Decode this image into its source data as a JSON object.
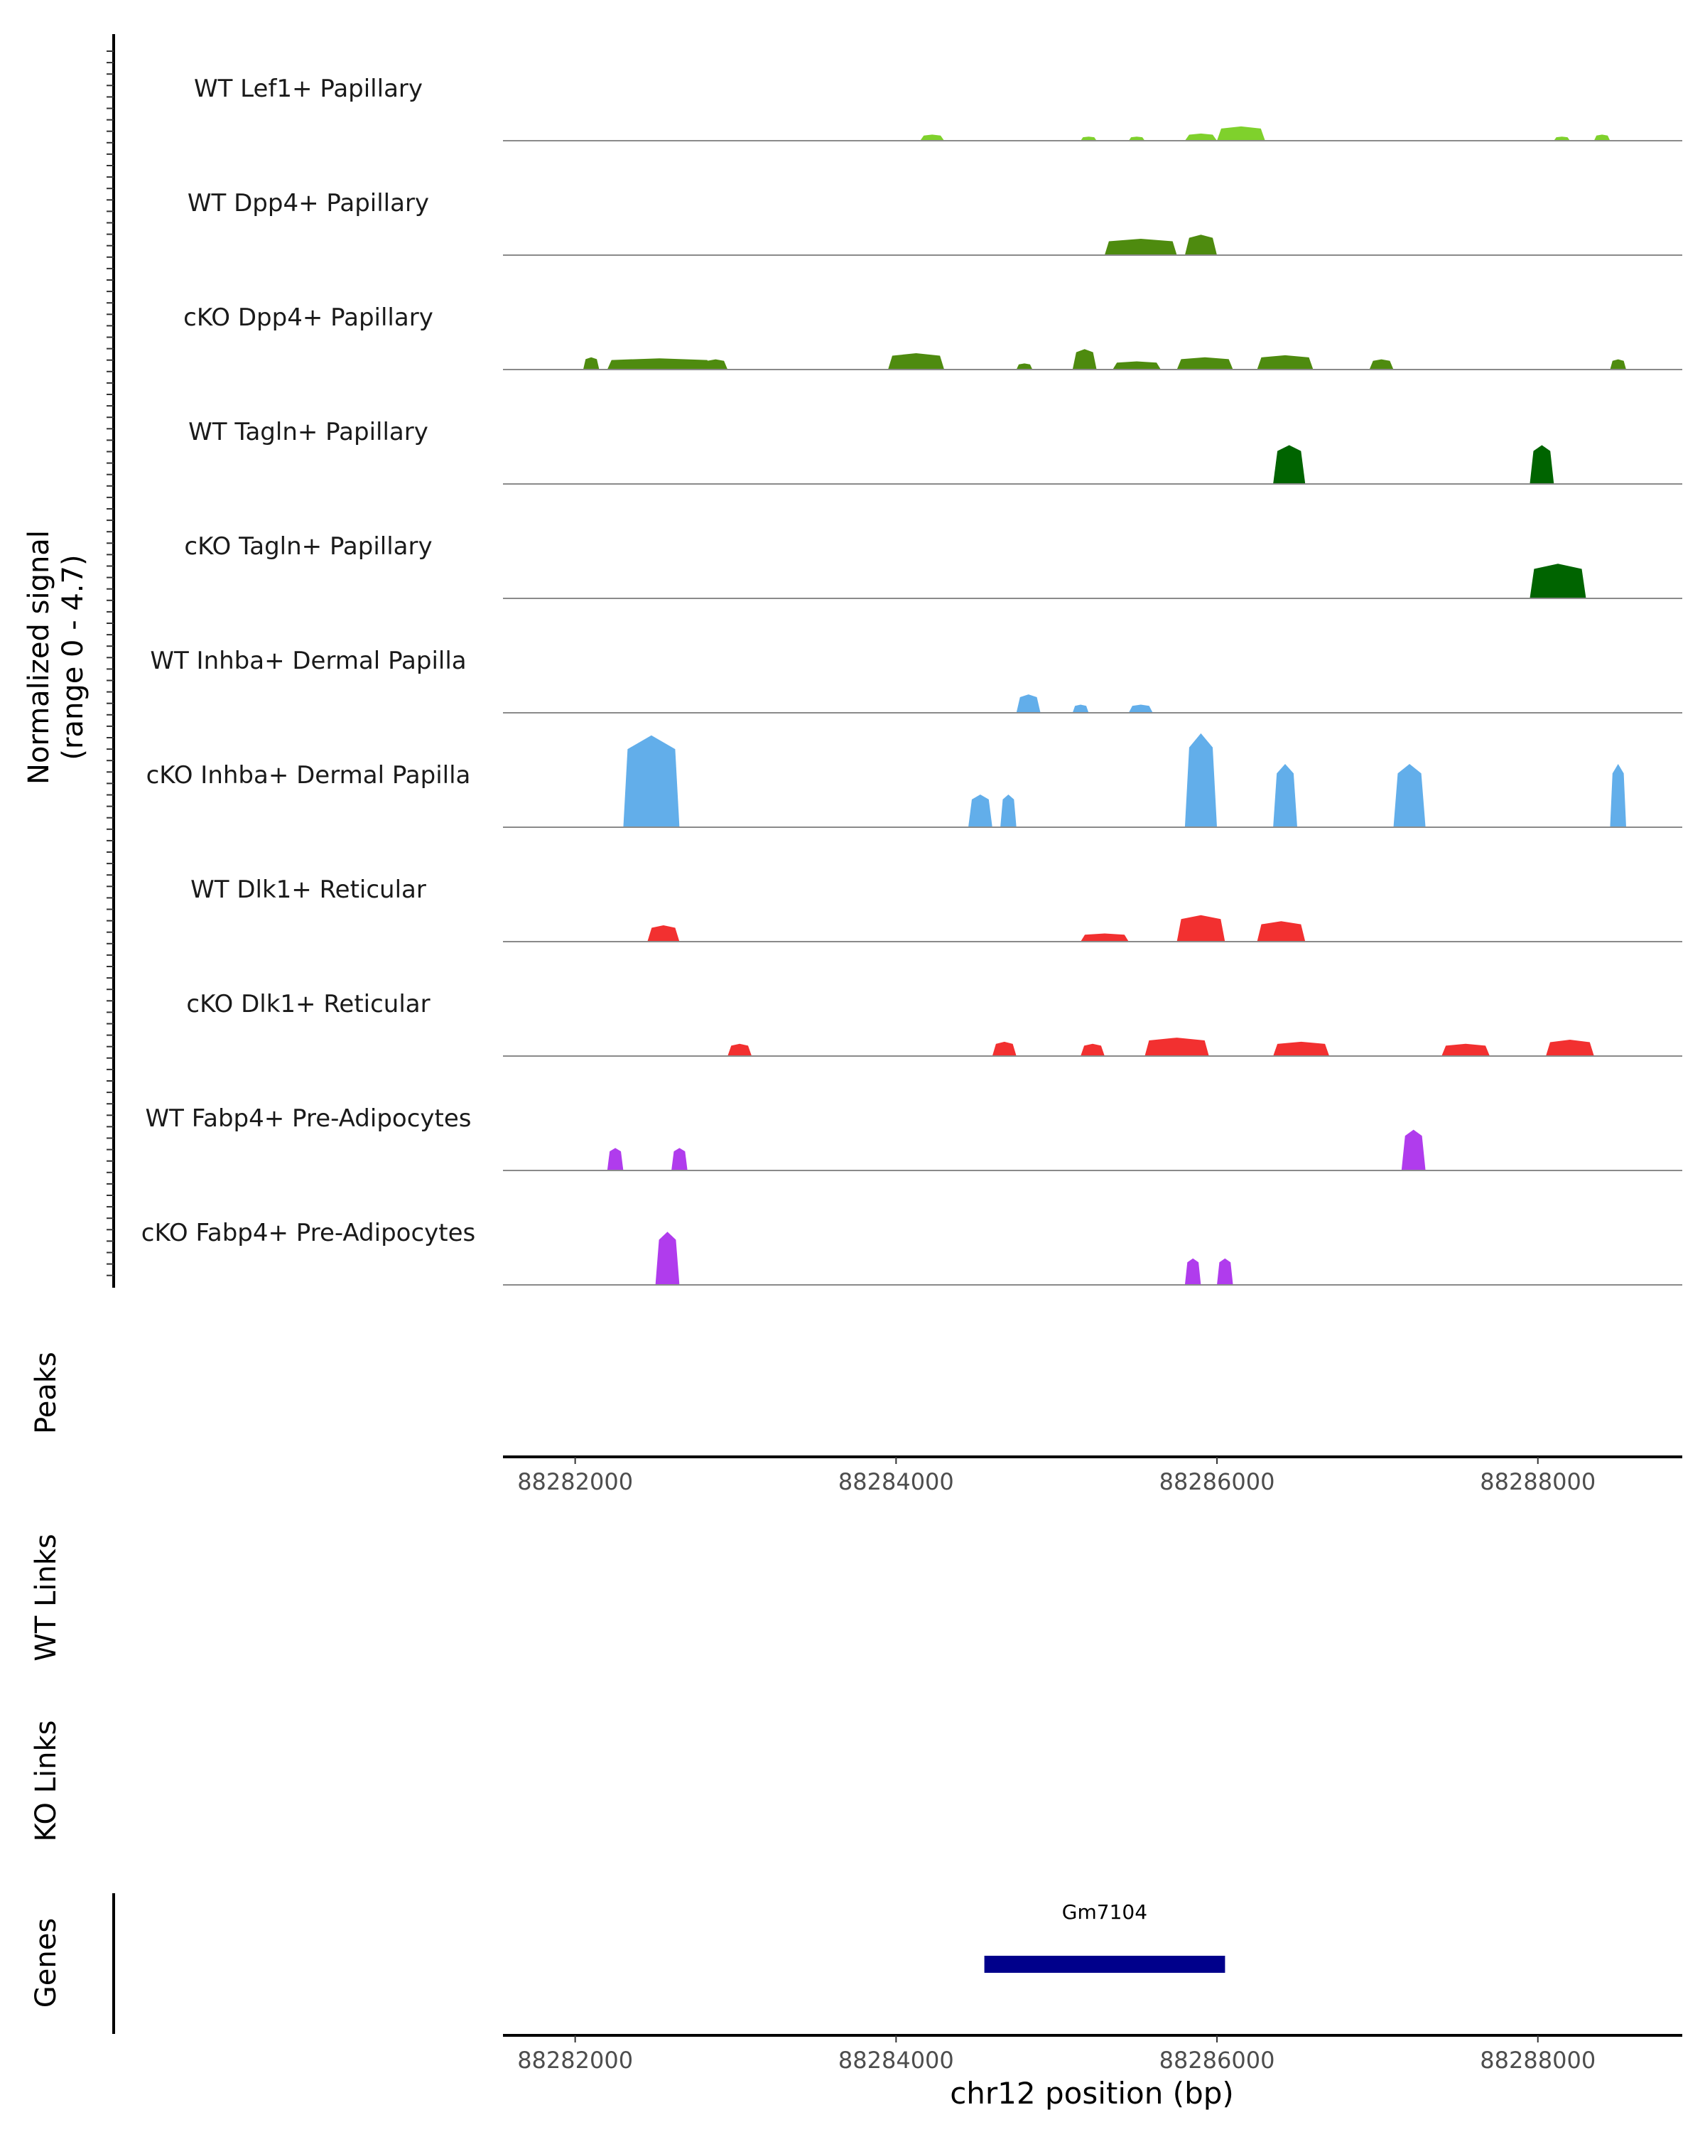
{
  "chart_data": {
    "type": "area",
    "title": "",
    "ylabel_line1": "Normalized signal",
    "ylabel_line2": "(range 0 - 4.7)",
    "yrange": [
      0,
      4.7
    ],
    "xlabel": "chr12 position (bp)",
    "xlim": [
      88281550,
      88288900
    ],
    "xticks": [
      88282000,
      88284000,
      88286000,
      88288000
    ],
    "xtick_labels": [
      "88282000",
      "88284000",
      "88286000",
      "88288000"
    ],
    "series": [
      {
        "name": "WT Lef1+ Papillary",
        "color": "#7fd12c",
        "peaks": [
          {
            "start": 88284150,
            "end": 88284300,
            "height": 0.3
          },
          {
            "start": 88285150,
            "end": 88285250,
            "height": 0.2
          },
          {
            "start": 88285450,
            "end": 88285550,
            "height": 0.2
          },
          {
            "start": 88285800,
            "end": 88286000,
            "height": 0.35
          },
          {
            "start": 88286000,
            "end": 88286300,
            "height": 0.7
          },
          {
            "start": 88288100,
            "end": 88288200,
            "height": 0.2
          },
          {
            "start": 88288350,
            "end": 88288450,
            "height": 0.3
          }
        ]
      },
      {
        "name": "WT Dpp4+ Papillary",
        "color": "#4e8b0f",
        "peaks": [
          {
            "start": 88285300,
            "end": 88285750,
            "height": 0.8
          },
          {
            "start": 88285800,
            "end": 88286000,
            "height": 1.0
          }
        ]
      },
      {
        "name": "cKO Dpp4+ Papillary",
        "color": "#4e8b0f",
        "peaks": [
          {
            "start": 88282050,
            "end": 88282150,
            "height": 0.6
          },
          {
            "start": 88282200,
            "end": 88282850,
            "height": 0.55
          },
          {
            "start": 88282800,
            "end": 88282950,
            "height": 0.5
          },
          {
            "start": 88283950,
            "end": 88284300,
            "height": 0.8
          },
          {
            "start": 88284750,
            "end": 88284850,
            "height": 0.3
          },
          {
            "start": 88285100,
            "end": 88285250,
            "height": 1.0
          },
          {
            "start": 88285350,
            "end": 88285650,
            "height": 0.4
          },
          {
            "start": 88285750,
            "end": 88286100,
            "height": 0.6
          },
          {
            "start": 88286250,
            "end": 88286600,
            "height": 0.7
          },
          {
            "start": 88286950,
            "end": 88287100,
            "height": 0.5
          },
          {
            "start": 88288450,
            "end": 88288550,
            "height": 0.5
          }
        ]
      },
      {
        "name": "WT Tagln+ Papillary",
        "color": "#006400",
        "peaks": [
          {
            "start": 88286350,
            "end": 88286550,
            "height": 1.9
          },
          {
            "start": 88287950,
            "end": 88288100,
            "height": 1.9
          }
        ]
      },
      {
        "name": "cKO Tagln+ Papillary",
        "color": "#006400",
        "peaks": [
          {
            "start": 88287950,
            "end": 88288300,
            "height": 1.7
          }
        ]
      },
      {
        "name": "WT Inhba+ Dermal Papilla",
        "color": "#62aeea",
        "peaks": [
          {
            "start": 88284750,
            "end": 88284900,
            "height": 0.9
          },
          {
            "start": 88285100,
            "end": 88285200,
            "height": 0.4
          },
          {
            "start": 88285450,
            "end": 88285600,
            "height": 0.4
          }
        ]
      },
      {
        "name": "cKO Inhba+ Dermal Papilla",
        "color": "#62aeea",
        "peaks": [
          {
            "start": 88282300,
            "end": 88282650,
            "height": 4.5
          },
          {
            "start": 88284450,
            "end": 88284600,
            "height": 1.6
          },
          {
            "start": 88284650,
            "end": 88284750,
            "height": 1.6
          },
          {
            "start": 88285800,
            "end": 88286000,
            "height": 4.6
          },
          {
            "start": 88286350,
            "end": 88286500,
            "height": 3.1
          },
          {
            "start": 88287100,
            "end": 88287300,
            "height": 3.1
          },
          {
            "start": 88288450,
            "end": 88288550,
            "height": 3.1
          }
        ]
      },
      {
        "name": "WT Dlk1+ Reticular",
        "color": "#f23030",
        "peaks": [
          {
            "start": 88282450,
            "end": 88282650,
            "height": 0.8
          },
          {
            "start": 88285150,
            "end": 88285450,
            "height": 0.4
          },
          {
            "start": 88285750,
            "end": 88286050,
            "height": 1.3
          },
          {
            "start": 88286250,
            "end": 88286550,
            "height": 1.0
          }
        ]
      },
      {
        "name": "cKO Dlk1+ Reticular",
        "color": "#f23030",
        "peaks": [
          {
            "start": 88282950,
            "end": 88283100,
            "height": 0.6
          },
          {
            "start": 88284600,
            "end": 88284750,
            "height": 0.7
          },
          {
            "start": 88285150,
            "end": 88285300,
            "height": 0.6
          },
          {
            "start": 88285550,
            "end": 88285950,
            "height": 0.9
          },
          {
            "start": 88286350,
            "end": 88286700,
            "height": 0.7
          },
          {
            "start": 88287400,
            "end": 88287700,
            "height": 0.6
          },
          {
            "start": 88288050,
            "end": 88288350,
            "height": 0.8
          }
        ]
      },
      {
        "name": "WT Fabp4+ Pre-Adipocytes",
        "color": "#b03ced",
        "peaks": [
          {
            "start": 88282200,
            "end": 88282300,
            "height": 1.1
          },
          {
            "start": 88282600,
            "end": 88282700,
            "height": 1.1
          },
          {
            "start": 88287150,
            "end": 88287300,
            "height": 2.0
          }
        ]
      },
      {
        "name": "cKO Fabp4+ Pre-Adipocytes",
        "color": "#b03ced",
        "peaks": [
          {
            "start": 88282500,
            "end": 88282650,
            "height": 2.6
          },
          {
            "start": 88285800,
            "end": 88285900,
            "height": 1.3
          },
          {
            "start": 88286000,
            "end": 88286100,
            "height": 1.3
          }
        ]
      }
    ],
    "peaks_track_label": "Peaks",
    "wt_links_label": "WT Links",
    "ko_links_label": "KO Links",
    "genes_track_label": "Genes",
    "genes": [
      {
        "name": "Gm7104",
        "start": 88284550,
        "end": 88286050,
        "color": "#00008b"
      }
    ]
  }
}
